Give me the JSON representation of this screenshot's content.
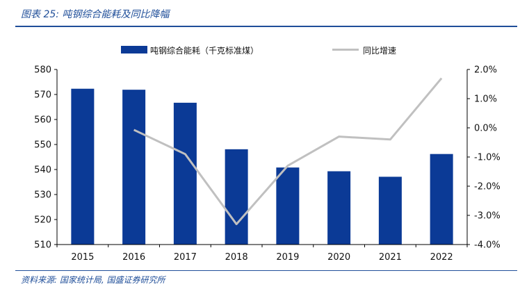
{
  "figure_title": "图表 25:  吨钢综合能耗及同比降幅",
  "source_note": "资料来源:  国家统计局, 国盛证券研究所",
  "chart_data": {
    "type": "bar+line",
    "categories": [
      "2015",
      "2016",
      "2017",
      "2018",
      "2019",
      "2020",
      "2021",
      "2022"
    ],
    "series": [
      {
        "name": "吨钢综合能耗（千克标准煤）",
        "type": "bar",
        "axis": "left",
        "values": [
          572.3,
          571.9,
          566.7,
          548.1,
          540.8,
          539.3,
          537.1,
          546.2
        ]
      },
      {
        "name": "同比增速",
        "type": "line",
        "axis": "right",
        "values": [
          null,
          -0.07,
          -0.9,
          -3.3,
          -1.3,
          -0.3,
          -0.4,
          1.7
        ]
      }
    ],
    "y_left": {
      "min": 510,
      "max": 580,
      "ticks": [
        "510",
        "520",
        "530",
        "540",
        "550",
        "560",
        "570",
        "580"
      ]
    },
    "y_right": {
      "min": -4.0,
      "max": 2.0,
      "ticks": [
        "-4.0%",
        "-3.0%",
        "-2.0%",
        "-1.0%",
        "0.0%",
        "1.0%",
        "2.0%"
      ]
    },
    "colors": {
      "bar": "#0b3a96",
      "line": "#c0c0c0"
    },
    "legend_position": "top",
    "grid": false
  }
}
